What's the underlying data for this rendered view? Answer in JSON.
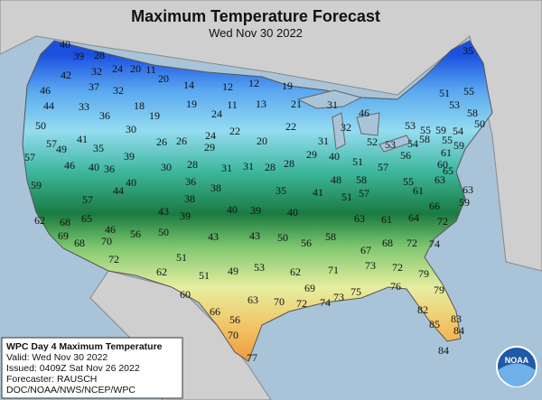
{
  "header": {
    "title": "Maximum Temperature Forecast",
    "subtitle": "Wed Nov 30 2022"
  },
  "temperatures": [
    40,
    39,
    28,
    24,
    20,
    11,
    35,
    42,
    32,
    46,
    37,
    32,
    20,
    14,
    12,
    12,
    19,
    51,
    55,
    44,
    33,
    18,
    19,
    11,
    13,
    21,
    31,
    53,
    58,
    36,
    19,
    24,
    46,
    50,
    30,
    22,
    22,
    32,
    53,
    55,
    59,
    54,
    50,
    57,
    41,
    26,
    26,
    24,
    29,
    20,
    31,
    52,
    53,
    54,
    58,
    55,
    59,
    57,
    49,
    35,
    39,
    30,
    28,
    31,
    31,
    28,
    28,
    29,
    40,
    51,
    57,
    56,
    60,
    61,
    59,
    46,
    40,
    36,
    40,
    36,
    38,
    35,
    41,
    48,
    58,
    55,
    61,
    63,
    65,
    57,
    44,
    38,
    40,
    39,
    40,
    51,
    57,
    63,
    66,
    59,
    62,
    68,
    65,
    46,
    39,
    43,
    63,
    61,
    64,
    72,
    56,
    50,
    43,
    43,
    50,
    56,
    58,
    69,
    70,
    67,
    68,
    72,
    74,
    68,
    72,
    51,
    49,
    53,
    71,
    73,
    72,
    62,
    62,
    51,
    79,
    69,
    60,
    79,
    70,
    72,
    73,
    74,
    75,
    76,
    66,
    63,
    56,
    82,
    83,
    85,
    84,
    70,
    84,
    77
  ],
  "legend": {
    "lines": [
      "WPC Day 4 Maximum Temperature",
      "Valid: Wed Nov 30 2022",
      "Issued: 0409Z Sat Nov 26 2022",
      "Forecaster: RAUSCH",
      "DOC/NOAA/NWS/NCEP/WPC"
    ]
  },
  "logo": "NOAA"
}
